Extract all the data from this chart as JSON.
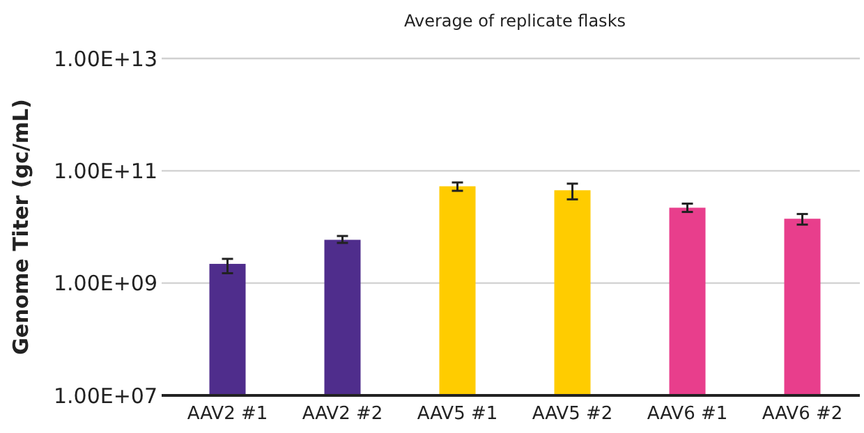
{
  "chart_data": {
    "type": "bar",
    "title": "Average of replicate flasks",
    "ylabel": "Genome Titer (gc/mL)",
    "categories": [
      "AAV2 #1",
      "AAV2 #2",
      "AAV5 #1",
      "AAV5 #2",
      "AAV6 #1",
      "AAV6 #2"
    ],
    "values": [
      2200000000.0,
      5900000000.0,
      53000000000.0,
      45000000000.0,
      22000000000.0,
      14000000000.0
    ],
    "errors": [
      [
        1500000000.0,
        2700000000.0
      ],
      [
        5200000000.0,
        6900000000.0
      ],
      [
        44000000000.0,
        62000000000.0
      ],
      [
        31000000000.0,
        59000000000.0
      ],
      [
        18500000000.0,
        26000000000.0
      ],
      [
        11000000000.0,
        17000000000.0
      ]
    ],
    "colors": [
      "#4f2d8c",
      "#4f2d8c",
      "#ffcc00",
      "#ffcc00",
      "#e83e8c",
      "#e83e8c"
    ],
    "log": true,
    "ylim": [
      10000000.0,
      10000000000000.0
    ],
    "yticks": [
      {
        "value": 10000000.0,
        "label": "1.00E+07"
      },
      {
        "value": 1000000000.0,
        "label": "1.00E+09"
      },
      {
        "value": 100000000000.0,
        "label": "1.00E+11"
      },
      {
        "value": 10000000000000.0,
        "label": "1.00E+13"
      }
    ],
    "grid": "y"
  }
}
